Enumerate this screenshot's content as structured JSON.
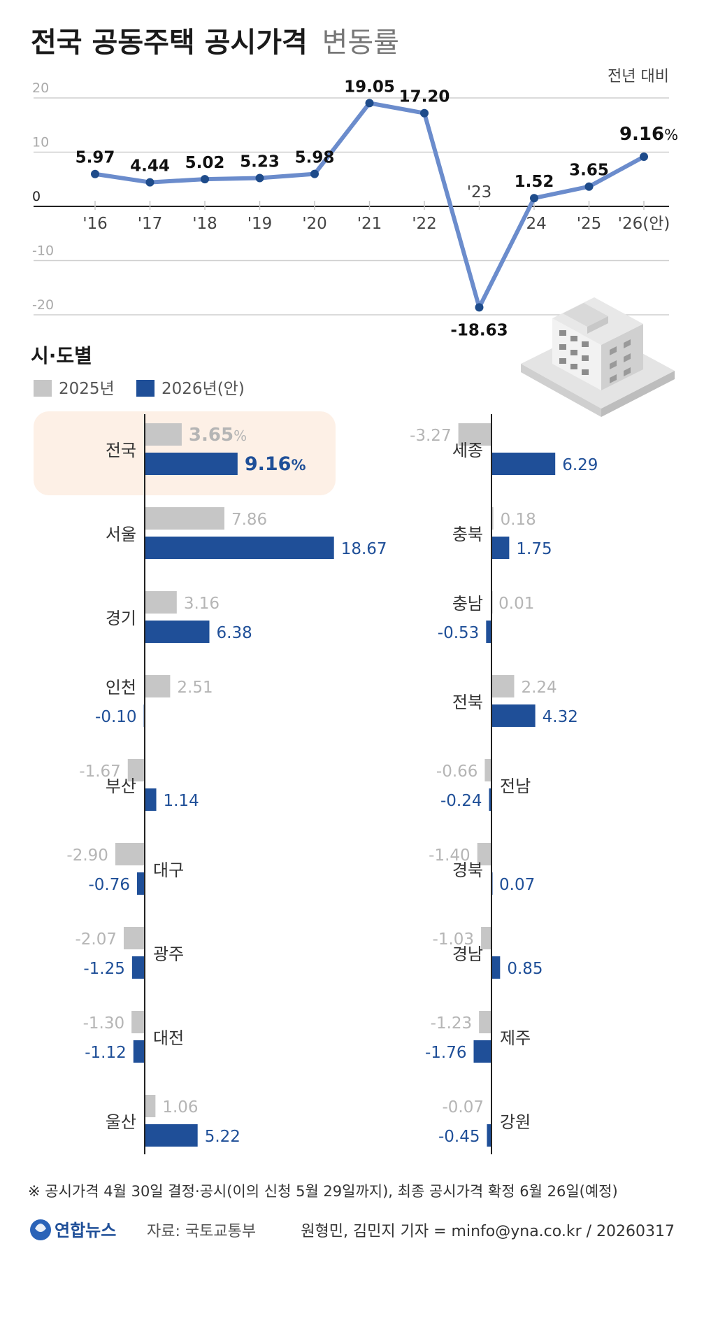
{
  "title": {
    "bold": "전국 공동주택 공시가격",
    "light": "변동률"
  },
  "unit_note": "전년 대비",
  "colors": {
    "line": "#6b8ccc",
    "dot": "#1e4b8a",
    "bar2025": "#c6c6c6",
    "bar2026": "#1f4f98",
    "label2025": "#b5b5b5",
    "label2026": "#1f4f98",
    "highlight": "#fdf0e6",
    "axis": "#222222"
  },
  "chart_data": [
    {
      "type": "line",
      "title": "전국 공동주택 공시가격 변동률",
      "ylabel": "전년 대비",
      "categories": [
        "'16",
        "'17",
        "'18",
        "'19",
        "'20",
        "'21",
        "'22",
        "'23",
        "'24",
        "'25",
        "'26(안)"
      ],
      "values": [
        5.97,
        4.44,
        5.02,
        5.23,
        5.98,
        19.05,
        17.2,
        -18.63,
        1.52,
        3.65,
        9.16
      ],
      "value_labels": [
        "5.97",
        "4.44",
        "5.02",
        "5.23",
        "5.98",
        "19.05",
        "17.20",
        "-18.63",
        "1.52",
        "3.65",
        "9.16"
      ],
      "last_value_suffix": "%",
      "ylim": [
        -20,
        20
      ],
      "yticks": [
        20,
        10,
        0,
        -10,
        -20
      ],
      "ytick_labels": [
        "20",
        "10",
        "0",
        "-10",
        "-20"
      ],
      "grid": true
    },
    {
      "type": "bar",
      "title": "시·도별",
      "series": [
        {
          "name": "2025년"
        },
        {
          "name": "2026년(안)"
        }
      ],
      "columns": [
        [
          {
            "region": "전국",
            "v2025": 3.65,
            "v2026": 9.16,
            "l2025": "3.65",
            "l2026": "9.16",
            "suffix": "%",
            "highlight": true
          },
          {
            "region": "서울",
            "v2025": 7.86,
            "v2026": 18.67,
            "l2025": "7.86",
            "l2026": "18.67"
          },
          {
            "region": "경기",
            "v2025": 3.16,
            "v2026": 6.38,
            "l2025": "3.16",
            "l2026": "6.38"
          },
          {
            "region": "인천",
            "v2025": 2.51,
            "v2026": -0.1,
            "l2025": "2.51",
            "l2026": "-0.10"
          },
          {
            "region": "부산",
            "v2025": -1.67,
            "v2026": 1.14,
            "l2025": "-1.67",
            "l2026": "1.14"
          },
          {
            "region": "대구",
            "v2025": -2.9,
            "v2026": -0.76,
            "l2025": "-2.90",
            "l2026": "-0.76"
          },
          {
            "region": "광주",
            "v2025": -2.07,
            "v2026": -1.25,
            "l2025": "-2.07",
            "l2026": "-1.25"
          },
          {
            "region": "대전",
            "v2025": -1.3,
            "v2026": -1.12,
            "l2025": "-1.30",
            "l2026": "-1.12"
          },
          {
            "region": "울산",
            "v2025": 1.06,
            "v2026": 5.22,
            "l2025": "1.06",
            "l2026": "5.22"
          }
        ],
        [
          {
            "region": "세종",
            "v2025": -3.27,
            "v2026": 6.29,
            "l2025": "-3.27",
            "l2026": "6.29"
          },
          {
            "region": "충북",
            "v2025": 0.18,
            "v2026": 1.75,
            "l2025": "0.18",
            "l2026": "1.75"
          },
          {
            "region": "충남",
            "v2025": 0.01,
            "v2026": -0.53,
            "l2025": "0.01",
            "l2026": "-0.53"
          },
          {
            "region": "전북",
            "v2025": 2.24,
            "v2026": 4.32,
            "l2025": "2.24",
            "l2026": "4.32"
          },
          {
            "region": "전남",
            "v2025": -0.66,
            "v2026": -0.24,
            "l2025": "-0.66",
            "l2026": "-0.24"
          },
          {
            "region": "경북",
            "v2025": -1.4,
            "v2026": 0.07,
            "l2025": "-1.40",
            "l2026": "0.07"
          },
          {
            "region": "경남",
            "v2025": -1.03,
            "v2026": 0.85,
            "l2025": "-1.03",
            "l2026": "0.85"
          },
          {
            "region": "제주",
            "v2025": -1.23,
            "v2026": -1.76,
            "l2025": "-1.23",
            "l2026": "-1.76"
          },
          {
            "region": "강원",
            "v2025": -0.07,
            "v2026": -0.45,
            "l2025": "-0.07",
            "l2026": "-0.45"
          }
        ]
      ]
    }
  ],
  "footnote": "※ 공시가격 4월 30일 결정·공시(이의 신청 5월 29일까지), 최종 공시가격 확정 6월 26일(예정)",
  "footer": {
    "logo_text": "연합뉴스",
    "source": "자료: 국토교통부",
    "credit": "원형민, 김민지 기자 = minfo@yna.co.kr / 20260317"
  }
}
